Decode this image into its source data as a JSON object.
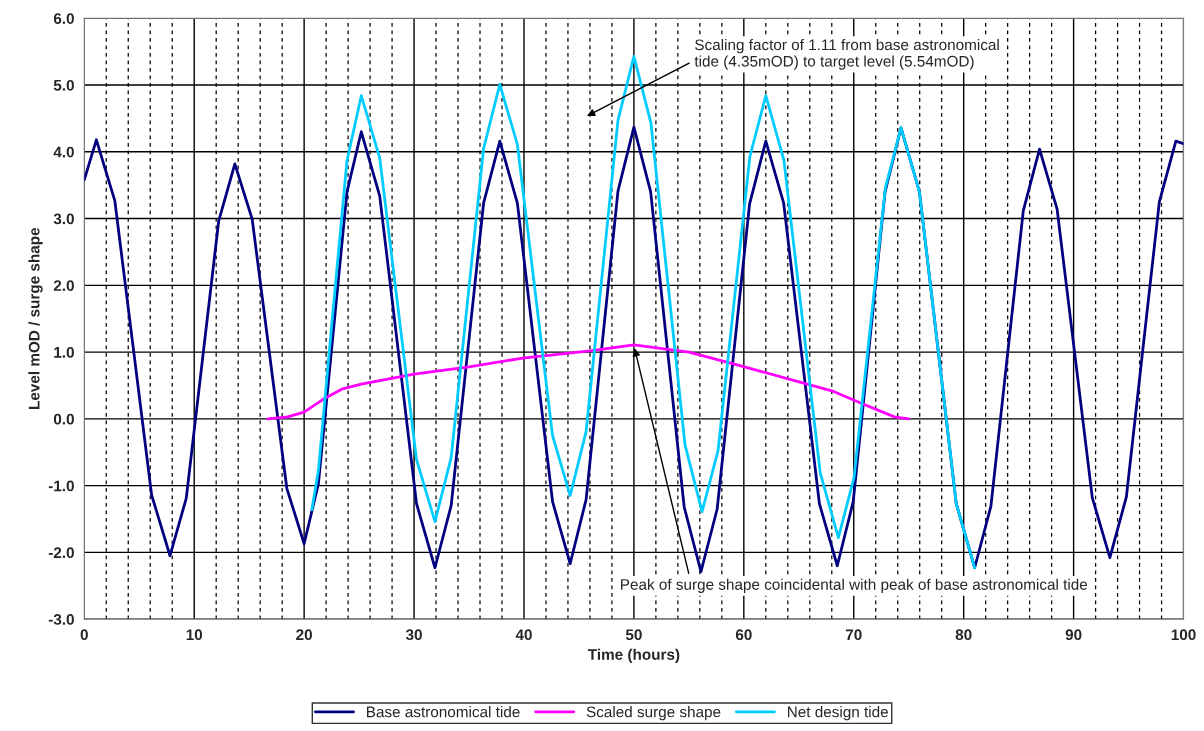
{
  "chart_data": {
    "type": "line",
    "xlabel": "Time (hours)",
    "ylabel": "Level mOD / surge shape",
    "xlim": [
      0,
      100
    ],
    "xticks": [
      0,
      10,
      20,
      30,
      40,
      50,
      60,
      70,
      80,
      90,
      100
    ],
    "ylim": [
      -3,
      6
    ],
    "yticks": [
      {
        "value": -3,
        "label": "-3.0"
      },
      {
        "value": -2,
        "label": "-2.0"
      },
      {
        "value": -1,
        "label": "-1.0"
      },
      {
        "value": 0,
        "label": "0.0"
      },
      {
        "value": 1,
        "label": "1.0"
      },
      {
        "value": 2,
        "label": "2.0"
      },
      {
        "value": 3,
        "label": "3.0"
      },
      {
        "value": 4,
        "label": "4.0"
      },
      {
        "value": 5,
        "label": "5.0"
      },
      {
        "value": 6,
        "label": "6.0"
      }
    ],
    "grid": true,
    "legend": "bottom",
    "marker": "none",
    "line_style": "solid",
    "series": [
      {
        "name": "Base astronomical tide",
        "color": "#000080",
        "x": [
          0,
          1.1,
          2.775,
          4.45,
          6.125,
          7.8,
          9.275,
          10.75,
          12.225,
          13.7,
          15.275,
          16.85,
          18.425,
          20.0,
          21.3,
          22.6,
          23.9,
          25.2,
          26.875,
          28.55,
          30.225,
          31.9,
          33.375,
          34.85,
          36.325,
          37.8,
          39.4,
          41.0,
          42.6,
          44.2,
          45.65,
          47.1,
          48.55,
          50.0,
          51.525,
          53.05,
          54.575,
          56.1,
          57.575,
          59.05,
          60.525,
          62.0,
          63.625,
          65.25,
          66.875,
          68.5,
          69.95,
          71.4,
          72.85,
          74.3,
          75.975,
          77.65,
          79.325,
          81.0,
          82.475,
          83.95,
          85.425,
          86.9,
          88.5,
          90.1,
          91.7,
          93.3,
          94.8,
          96.3,
          97.8,
          99.3,
          100
        ],
        "values": [
          3.58,
          4.18,
          3.27,
          1.07,
          -1.14,
          -2.05,
          -1.19,
          0.885,
          2.96,
          3.82,
          2.99,
          0.975,
          -1.04,
          -1.87,
          -0.97,
          1.215,
          3.4,
          4.3,
          3.34,
          1.035,
          -1.27,
          -2.23,
          -1.3,
          0.965,
          3.23,
          4.16,
          3.23,
          0.995,
          -1.24,
          -2.17,
          -1.21,
          1.1,
          3.41,
          4.37,
          3.4,
          1.04,
          -1.32,
          -2.29,
          -1.35,
          0.935,
          3.22,
          4.16,
          3.23,
          0.98,
          -1.27,
          -2.2,
          -1.24,
          1.08,
          3.4,
          4.36,
          3.4,
          1.065,
          -1.27,
          -2.23,
          -1.31,
          0.905,
          3.12,
          4.04,
          3.14,
          0.98,
          -1.18,
          -2.08,
          -1.17,
          1.04,
          3.25,
          4.16,
          4.12
        ]
      },
      {
        "name": "Scaled surge shape",
        "color": "#ff00ff",
        "x": [
          16.7,
          18.5,
          20,
          21.9,
          23.5,
          25.2,
          30,
          35,
          39.9,
          46,
          50,
          55,
          59.4,
          65.1,
          68,
          70.9,
          73.7,
          75
        ],
        "values": [
          0,
          0.03,
          0.1,
          0.31,
          0.45,
          0.52,
          0.67,
          0.78,
          0.91,
          1.02,
          1.11,
          1.0,
          0.81,
          0.55,
          0.42,
          0.22,
          0.03,
          0
        ]
      },
      {
        "name": "Net design tide",
        "color": "#00ccff",
        "x": [
          20.7,
          21.3,
          22.6,
          23.9,
          25.2,
          26.875,
          28.55,
          30.225,
          31.9,
          33.375,
          34.85,
          36.325,
          37.8,
          39.4,
          41.0,
          42.6,
          44.2,
          45.65,
          47.1,
          48.55,
          50.0,
          51.55,
          53.1,
          54.65,
          56.2,
          57.65,
          59.1,
          60.55,
          62.0,
          63.65,
          65.3,
          66.95,
          68.6,
          70.025,
          71.45,
          72.875,
          74.3,
          75.975,
          77.65,
          79.325,
          81.0
        ],
        "values": [
          -1.36,
          -0.77,
          1.57,
          3.87,
          4.84,
          3.91,
          1.65,
          -0.61,
          -1.54,
          -0.58,
          1.735,
          4.05,
          5.01,
          4.11,
          1.93,
          -0.25,
          -1.15,
          -0.19,
          2.14,
          4.47,
          5.43,
          4.43,
          2.02,
          -0.39,
          -1.39,
          -0.48,
          1.725,
          3.93,
          4.84,
          3.87,
          1.53,
          -0.81,
          -1.78,
          -0.88,
          1.29,
          3.46,
          4.36,
          3.4,
          1.065,
          -1.27,
          -2.23
        ]
      }
    ],
    "annotations": [
      "Scaling factor of 1.11 from base astronomical tide (4.35mOD) to target level (5.54mOD)",
      {
        "text": "Peak of surge shape coincidental with peak of base astronomical tide",
        "x": 50,
        "y": 1.1
      }
    ]
  }
}
